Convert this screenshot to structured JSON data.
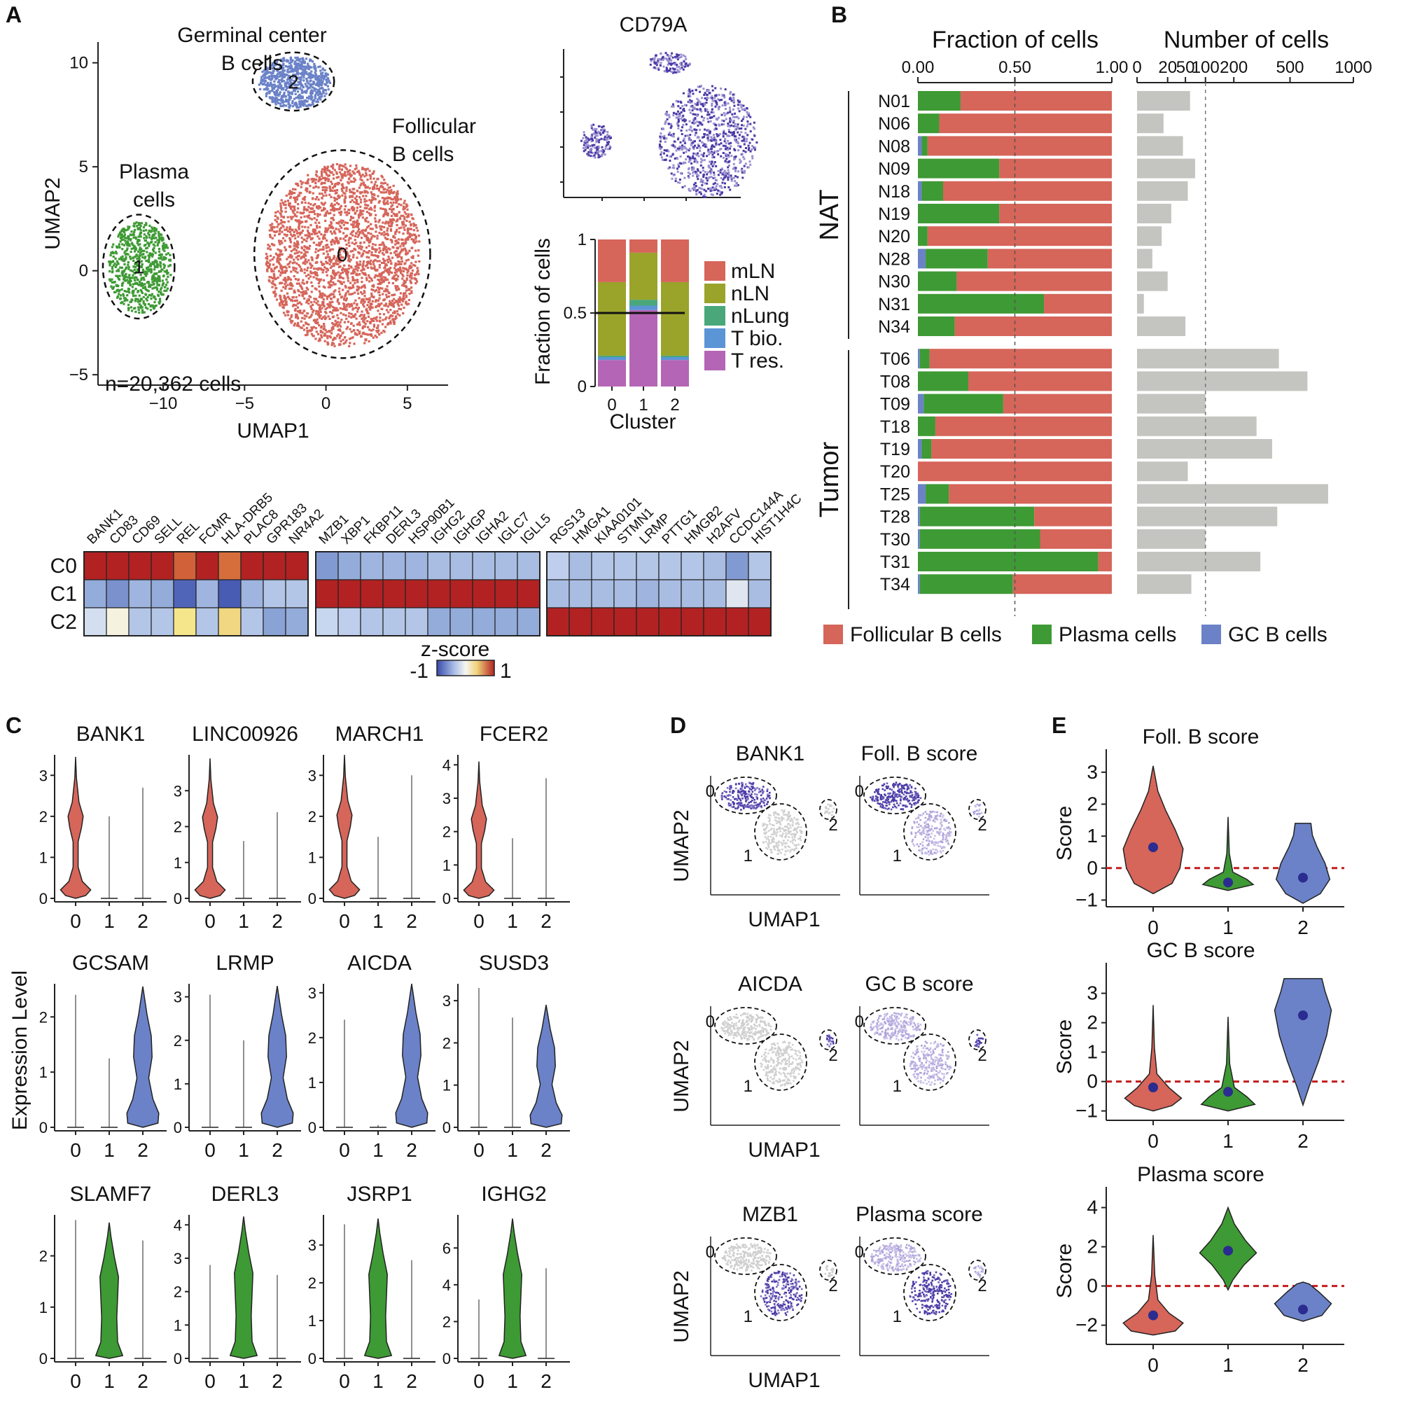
{
  "colors": {
    "follicular": "#d6655a",
    "plasma": "#3e9a34",
    "gc": "#6b82c8",
    "grey_bar": "#c4c4c0",
    "score_purple": "#4a3aa6",
    "grey_cells": "#cfcfcf",
    "mLN": "#d6655a",
    "nLN": "#9aa32a",
    "nLung": "#4aa77a",
    "Tbio": "#5b95d6",
    "Tres": "#b565b5"
  },
  "panel_labels": [
    "A",
    "B",
    "C",
    "D",
    "E"
  ],
  "chart_data": [
    {
      "id": "A_umap",
      "type": "scatter",
      "xlabel": "UMAP1",
      "ylabel": "UMAP2",
      "xlim": [
        -14,
        7.5
      ],
      "ylim": [
        -5.5,
        11
      ],
      "xticks": [
        -10,
        -5,
        0,
        5
      ],
      "yticks": [
        -5,
        0,
        5,
        10
      ],
      "annotation": "n=20,362 cells",
      "clusters": [
        {
          "label": "0",
          "name": "Follicular\nB cells",
          "cx": 1,
          "cy": 0.8,
          "rx": 5.4,
          "ry": 5.0,
          "color": "follicular"
        },
        {
          "label": "1",
          "name": "Plasma\ncells",
          "cx": -11.5,
          "cy": 0.2,
          "rx": 2.2,
          "ry": 2.5,
          "color": "plasma"
        },
        {
          "label": "2",
          "name": "Germinal center\nB cells",
          "cx": -2,
          "cy": 9.1,
          "rx": 2.5,
          "ry": 1.4,
          "color": "gc"
        }
      ]
    },
    {
      "id": "A_cd79a",
      "type": "scatter",
      "title": "CD79A"
    },
    {
      "id": "A_cluster_fraction",
      "type": "bar",
      "xlabel": "Cluster",
      "ylabel": "Fraction of cells",
      "categories": [
        "0",
        "1",
        "2"
      ],
      "yticks": [
        0,
        0.5,
        1
      ],
      "reference_line": 0.5,
      "series": [
        {
          "name": "T res.",
          "color": "Tres",
          "values": [
            0.18,
            0.52,
            0.18
          ]
        },
        {
          "name": "T bio.",
          "color": "Tbio",
          "values": [
            0.02,
            0.03,
            0.02
          ]
        },
        {
          "name": "nLung",
          "color": "nLung",
          "values": [
            0.01,
            0.04,
            0.01
          ]
        },
        {
          "name": "nLN",
          "color": "nLN",
          "values": [
            0.5,
            0.32,
            0.5
          ]
        },
        {
          "name": "mLN",
          "color": "mLN",
          "values": [
            0.29,
            0.09,
            0.29
          ]
        }
      ],
      "legend": [
        "mLN",
        "nLN",
        "nLung",
        "T bio.",
        "T res."
      ]
    },
    {
      "id": "A_heatmap",
      "type": "heatmap",
      "legend_title": "z-score",
      "legend_range": [
        "-1",
        "1"
      ],
      "rows": [
        "C0",
        "C1",
        "C2"
      ],
      "blocks": [
        {
          "genes": [
            "BANK1",
            "CD83",
            "CD69",
            "SELL",
            "REL",
            "FCMR",
            "HLA-DRB5",
            "PLAC8",
            "GPR183",
            "NR4A2"
          ],
          "values": [
            [
              1,
              1,
              1,
              1,
              0.75,
              1,
              0.7,
              1,
              1,
              1
            ],
            [
              -0.45,
              -0.6,
              -0.4,
              -0.45,
              -0.85,
              -0.4,
              -0.9,
              -0.4,
              -0.3,
              -0.3
            ],
            [
              -0.15,
              0.05,
              -0.3,
              -0.3,
              0.3,
              -0.3,
              0.35,
              -0.3,
              -0.5,
              -0.45
            ]
          ]
        },
        {
          "genes": [
            "MZB1",
            "XBP1",
            "FKBP11",
            "DERL3",
            "HSP90B1",
            "IGHG2",
            "IGHGP",
            "IGHA2",
            "IGLC7",
            "IGLL5"
          ],
          "values": [
            [
              -0.55,
              -0.45,
              -0.4,
              -0.4,
              -0.4,
              -0.35,
              -0.35,
              -0.35,
              -0.35,
              -0.35
            ],
            [
              1,
              1,
              1,
              1,
              1,
              1,
              1,
              1,
              1,
              1
            ],
            [
              -0.2,
              -0.25,
              -0.3,
              -0.3,
              -0.3,
              -0.45,
              -0.45,
              -0.45,
              -0.45,
              -0.45
            ]
          ]
        },
        {
          "genes": [
            "RGS13",
            "HMGA1",
            "KIAA0101",
            "STMN1",
            "LRMP",
            "PTTG1",
            "HMGB2",
            "H2AFV",
            "CCDC144A",
            "HIST1H4C"
          ],
          "values": [
            [
              -0.25,
              -0.35,
              -0.3,
              -0.3,
              -0.3,
              -0.3,
              -0.3,
              -0.35,
              -0.55,
              -0.3
            ],
            [
              -0.35,
              -0.35,
              -0.35,
              -0.35,
              -0.4,
              -0.35,
              -0.35,
              -0.35,
              -0.1,
              -0.35
            ],
            [
              1,
              1,
              1,
              1,
              1,
              1,
              1,
              1,
              1,
              1
            ]
          ]
        }
      ]
    },
    {
      "id": "B_fraction",
      "type": "bar",
      "title": "Fraction of cells",
      "xticks": [
        "0.00",
        "0.50",
        "1.00"
      ],
      "groups": [
        {
          "name": "NAT",
          "samples": 11
        },
        {
          "name": "Tumor",
          "samples": 11
        }
      ],
      "samples": [
        "N01",
        "N06",
        "N08",
        "N09",
        "N18",
        "N19",
        "N20",
        "N28",
        "N30",
        "N31",
        "N34",
        "T06",
        "T08",
        "T09",
        "T18",
        "T19",
        "T20",
        "T25",
        "T28",
        "T30",
        "T31",
        "T34"
      ],
      "series": [
        {
          "name": "GC B cells",
          "color": "gc",
          "values": [
            0,
            0,
            0.02,
            0,
            0.02,
            0,
            0,
            0.04,
            0,
            0,
            0,
            0.01,
            0,
            0.03,
            0,
            0.02,
            0,
            0.04,
            0.01,
            0.01,
            0,
            0.01
          ]
        },
        {
          "name": "Plasma cells",
          "color": "plasma",
          "values": [
            0.22,
            0.11,
            0.03,
            0.42,
            0.11,
            0.42,
            0.05,
            0.32,
            0.2,
            0.65,
            0.19,
            0.05,
            0.26,
            0.41,
            0.09,
            0.05,
            0,
            0.12,
            0.59,
            0.62,
            0.93,
            0.48
          ]
        },
        {
          "name": "Follicular B cells",
          "color": "follicular",
          "values": [
            0.78,
            0.89,
            0.95,
            0.58,
            0.87,
            0.58,
            0.95,
            0.64,
            0.8,
            0.35,
            0.81,
            0.94,
            0.74,
            0.56,
            0.91,
            0.93,
            1.0,
            0.84,
            0.4,
            0.37,
            0.07,
            0.51
          ]
        }
      ],
      "legend": [
        "Follicular B cells",
        "Plasma cells",
        "GC B cells"
      ]
    },
    {
      "id": "B_number",
      "type": "bar",
      "title": "Number of cells",
      "scale": "sqrt",
      "xticks": [
        "0",
        "20",
        "50",
        "100",
        "200",
        "500",
        "1000"
      ],
      "xtick_values": [
        0,
        20,
        50,
        100,
        200,
        500,
        1000
      ],
      "reference_line": 100,
      "values": [
        60,
        15,
        45,
        72,
        55,
        25,
        13,
        5,
        20,
        1,
        50,
        430,
        620,
        100,
        305,
        390,
        55,
        780,
        420,
        100,
        325,
        63
      ]
    },
    {
      "id": "C_violins",
      "type": "violin",
      "ylabel": "Expression Level",
      "categories": [
        "0",
        "1",
        "2"
      ],
      "genes": [
        {
          "gene": "BANK1",
          "ymax": 3.5,
          "yticks": [
            0,
            1,
            2,
            3
          ],
          "color_idx": 0,
          "max": [
            3.45,
            2.0,
            2.7
          ]
        },
        {
          "gene": "LINC00926",
          "ymax": 4.0,
          "yticks": [
            0,
            1,
            2,
            3
          ],
          "color_idx": 0,
          "max": [
            3.9,
            1.6,
            2.4
          ]
        },
        {
          "gene": "MARCH1",
          "ymax": 3.5,
          "yticks": [
            0,
            1,
            2,
            3
          ],
          "color_idx": 0,
          "max": [
            3.5,
            1.5,
            3.0
          ]
        },
        {
          "gene": "FCER2",
          "ymax": 4.3,
          "yticks": [
            0,
            1,
            2,
            3,
            4
          ],
          "color_idx": 0,
          "max": [
            4.1,
            1.8,
            3.6
          ]
        },
        {
          "gene": "GCSAM",
          "ymax": 2.6,
          "yticks": [
            0,
            1,
            2
          ],
          "color_idx": 2,
          "max": [
            2.4,
            1.25,
            2.55
          ]
        },
        {
          "gene": "LRMP",
          "ymax": 3.3,
          "yticks": [
            0,
            1,
            2,
            3
          ],
          "color_idx": 2,
          "max": [
            3.05,
            2.0,
            3.25
          ]
        },
        {
          "gene": "AICDA",
          "ymax": 3.2,
          "yticks": [
            0,
            1,
            2,
            3
          ],
          "color_idx": 2,
          "max": [
            2.4,
            0.05,
            3.2
          ]
        },
        {
          "gene": "SUSD3",
          "ymax": 3.4,
          "yticks": [
            0,
            1,
            2,
            3
          ],
          "color_idx": 2,
          "max": [
            3.3,
            2.6,
            2.9
          ]
        },
        {
          "gene": "SLAMF7",
          "ymax": 2.8,
          "yticks": [
            0,
            1,
            2
          ],
          "color_idx": 1,
          "max": [
            2.7,
            2.65,
            2.3
          ]
        },
        {
          "gene": "DERL3",
          "ymax": 4.3,
          "yticks": [
            0,
            1,
            2,
            3,
            4
          ],
          "color_idx": 1,
          "max": [
            2.8,
            4.25,
            2.5
          ]
        },
        {
          "gene": "JSRP1",
          "ymax": 3.8,
          "yticks": [
            0,
            1,
            2,
            3
          ],
          "color_idx": 1,
          "max": [
            3.55,
            3.7,
            2.6
          ]
        },
        {
          "gene": "IGHG2",
          "ymax": 7.8,
          "yticks": [
            0,
            2,
            4,
            6
          ],
          "color_idx": 1,
          "max": [
            3.2,
            7.6,
            4.9
          ]
        }
      ]
    },
    {
      "id": "D_umaps",
      "type": "scatter",
      "xlabel": "UMAP1",
      "ylabel": "UMAP2",
      "rows": [
        {
          "left": "BANK1",
          "right": "Foll. B score",
          "target": "0"
        },
        {
          "left": "AICDA",
          "right": "GC B score",
          "target": "2"
        },
        {
          "left": "MZB1",
          "right": "Plasma score",
          "target": "1"
        }
      ],
      "cluster_labels": [
        "0",
        "1",
        "2"
      ]
    },
    {
      "id": "E_scores",
      "type": "violin",
      "ylabel": "Score",
      "categories": [
        "0",
        "1",
        "2"
      ],
      "panels": [
        {
          "title": "Foll. B score",
          "ylim": [
            -1.1,
            3.5
          ],
          "yticks": [
            -1,
            0,
            1,
            2,
            3
          ],
          "means": [
            0.65,
            -0.45,
            -0.3
          ],
          "ranges": [
            [
              -0.8,
              3.2
            ],
            [
              -0.7,
              1.6
            ],
            [
              -1.1,
              1.4
            ]
          ]
        },
        {
          "title": "GC B score",
          "ylim": [
            -1.2,
            3.8
          ],
          "yticks": [
            -1,
            0,
            1,
            2,
            3
          ],
          "means": [
            -0.2,
            -0.35,
            2.25
          ],
          "ranges": [
            [
              -1.0,
              2.6
            ],
            [
              -1.0,
              2.2
            ],
            [
              -0.8,
              3.5
            ]
          ]
        },
        {
          "title": "Plasma score",
          "ylim": [
            -2.8,
            4.7
          ],
          "yticks": [
            -2,
            0,
            2,
            4
          ],
          "means": [
            -1.5,
            1.8,
            -1.2
          ],
          "ranges": [
            [
              -2.5,
              2.6
            ],
            [
              -0.2,
              4.0
            ],
            [
              -1.8,
              0.2
            ]
          ]
        }
      ]
    }
  ]
}
